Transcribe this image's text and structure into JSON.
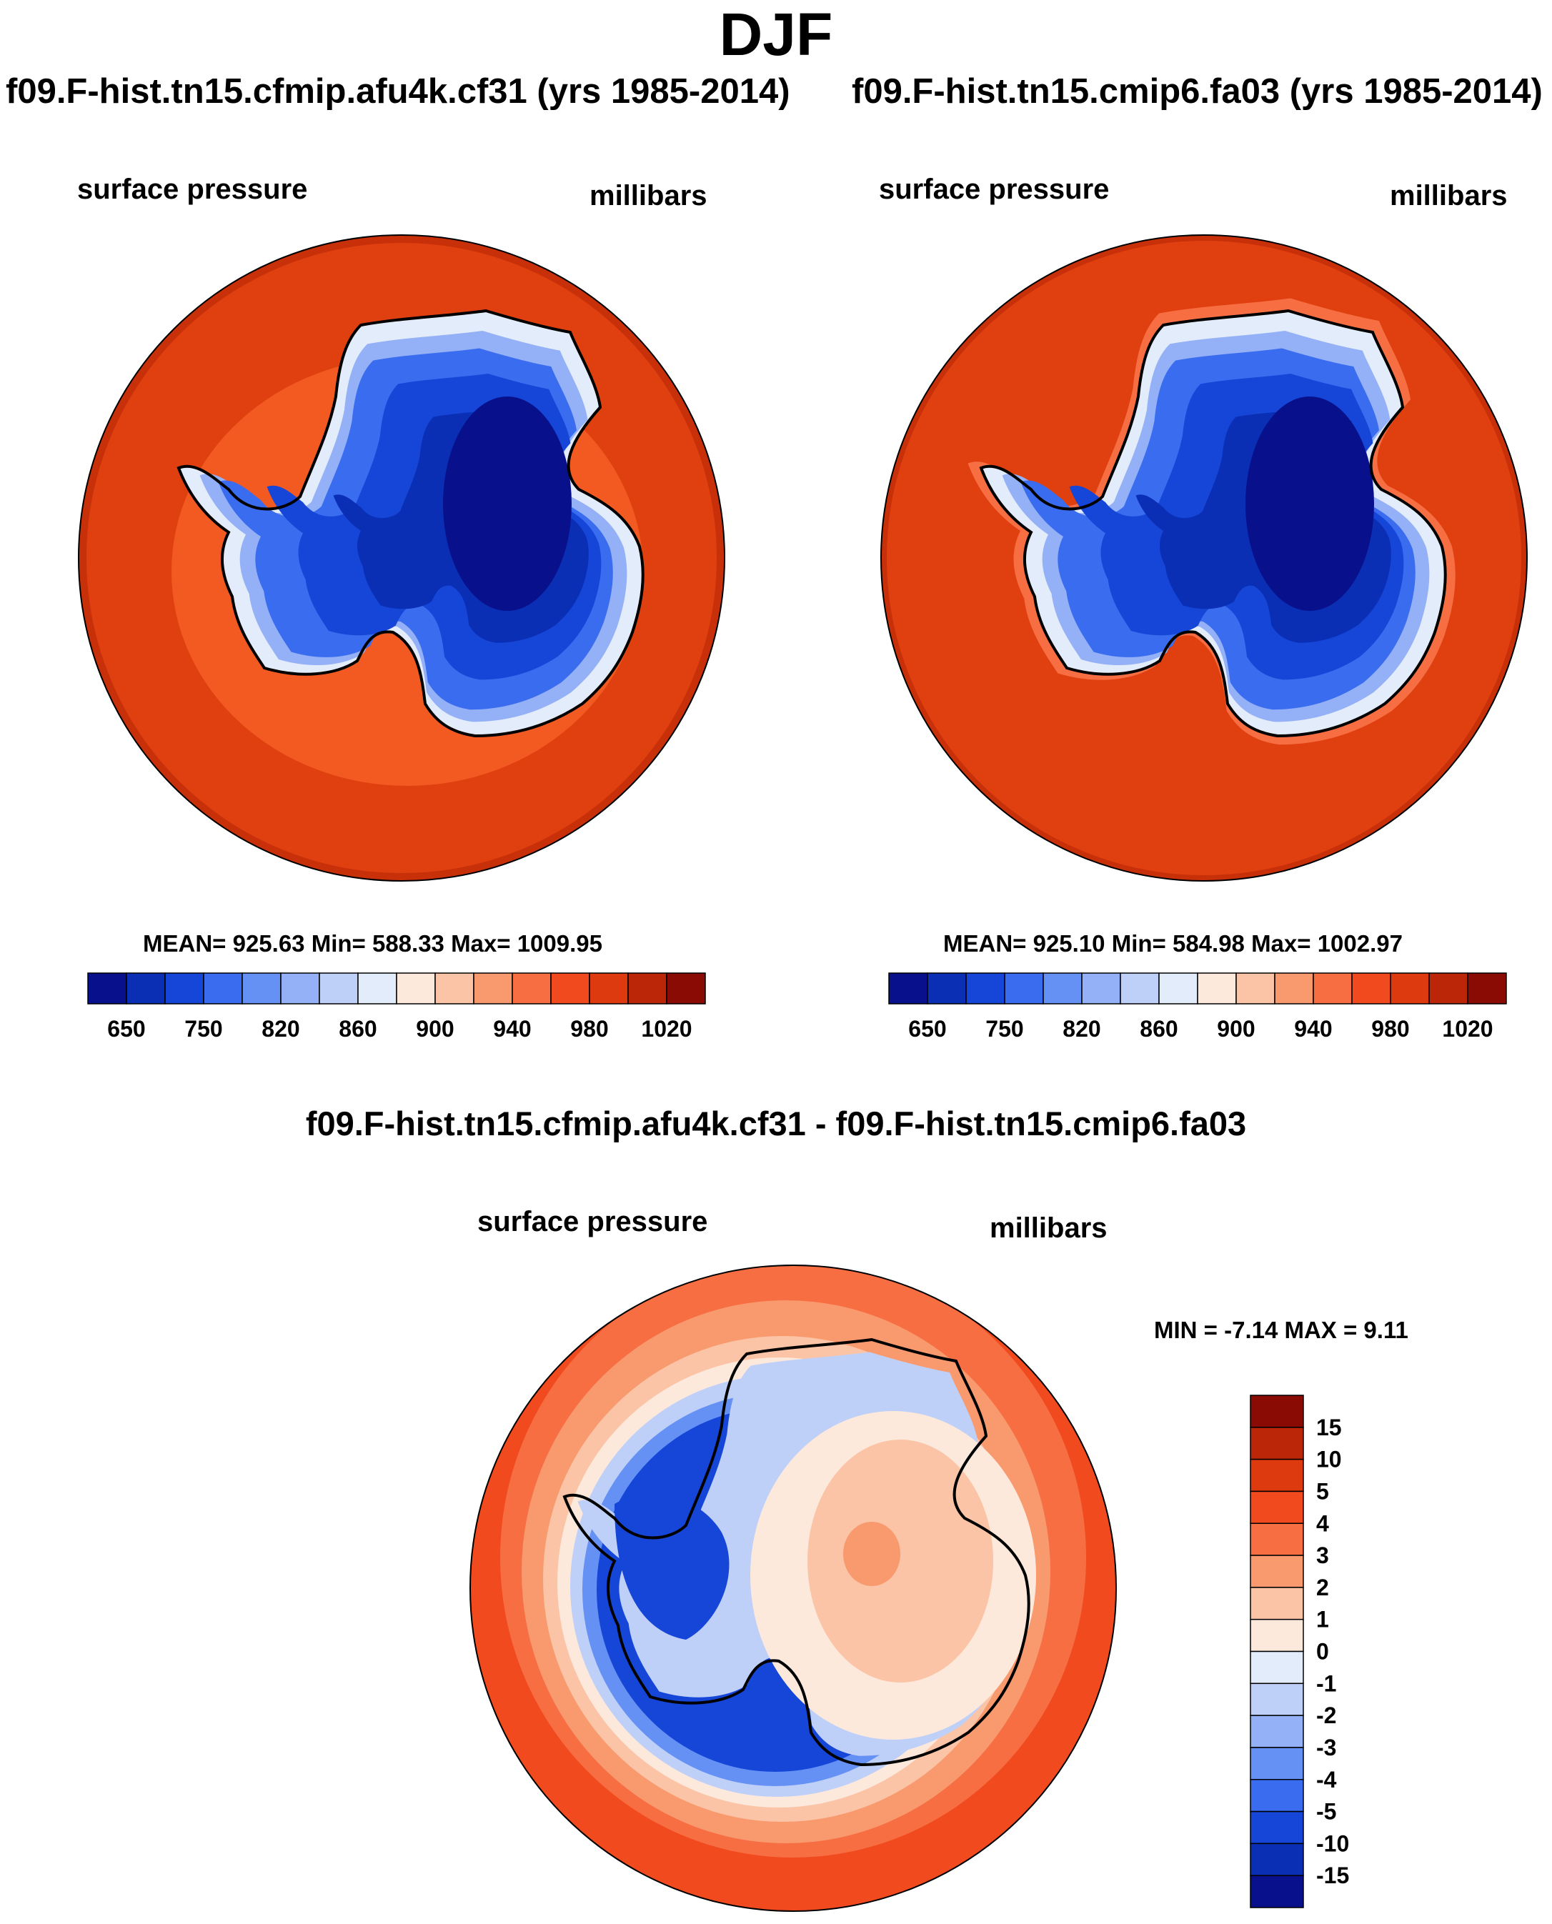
{
  "season": "DJF",
  "panels": [
    {
      "case": "f09.F-hist.tn15.cfmip.afu4k.cf31 (yrs 1985-2014)",
      "variable": "surface pressure",
      "units": "millibars",
      "stats": "MEAN= 925.63  Min= 588.33  Max= 1009.95"
    },
    {
      "case": "f09.F-hist.tn15.cmip6.fa03 (yrs 1985-2014)",
      "variable": "surface pressure",
      "units": "millibars",
      "stats": "MEAN= 925.10  Min= 584.98  Max= 1002.97"
    }
  ],
  "diff_panel": {
    "title": "f09.F-hist.tn15.cfmip.afu4k.cf31 - f09.F-hist.tn15.cmip6.fa03",
    "variable": "surface pressure",
    "units": "millibars",
    "stats": "MIN =  -7.14 MAX =   9.11"
  },
  "colorbar_abs": {
    "colors": [
      "#08108c",
      "#0a2fb4",
      "#1546d8",
      "#3a6cf0",
      "#6590f4",
      "#94b0f6",
      "#bfd0f8",
      "#e3ecfb",
      "#fde9dc",
      "#fbc4a6",
      "#f9996e",
      "#f76e43",
      "#f04a1e",
      "#dd3a10",
      "#bb2608",
      "#8a0a04"
    ],
    "labels": [
      "650",
      "750",
      "820",
      "860",
      "900",
      "940",
      "980",
      "1020"
    ]
  },
  "colorbar_diff": {
    "colors": [
      "#8a0a04",
      "#bb2608",
      "#dd3a10",
      "#f04a1e",
      "#f76e43",
      "#f9996e",
      "#fbc4a6",
      "#fde9dc",
      "#e3ecfb",
      "#bfd0f8",
      "#94b0f6",
      "#6590f4",
      "#3a6cf0",
      "#1546d8",
      "#0a2fb4",
      "#08108c"
    ],
    "labels": [
      "15",
      "10",
      "5",
      "4",
      "3",
      "2",
      "1",
      "0",
      "-1",
      "-2",
      "-3",
      "-4",
      "-5",
      "-10",
      "-15"
    ]
  },
  "palette": {
    "ocean_high": "#e0400f",
    "ocean_mid": "#f25a22",
    "rim_dark": "#c8300a",
    "land_line": "#000000"
  }
}
